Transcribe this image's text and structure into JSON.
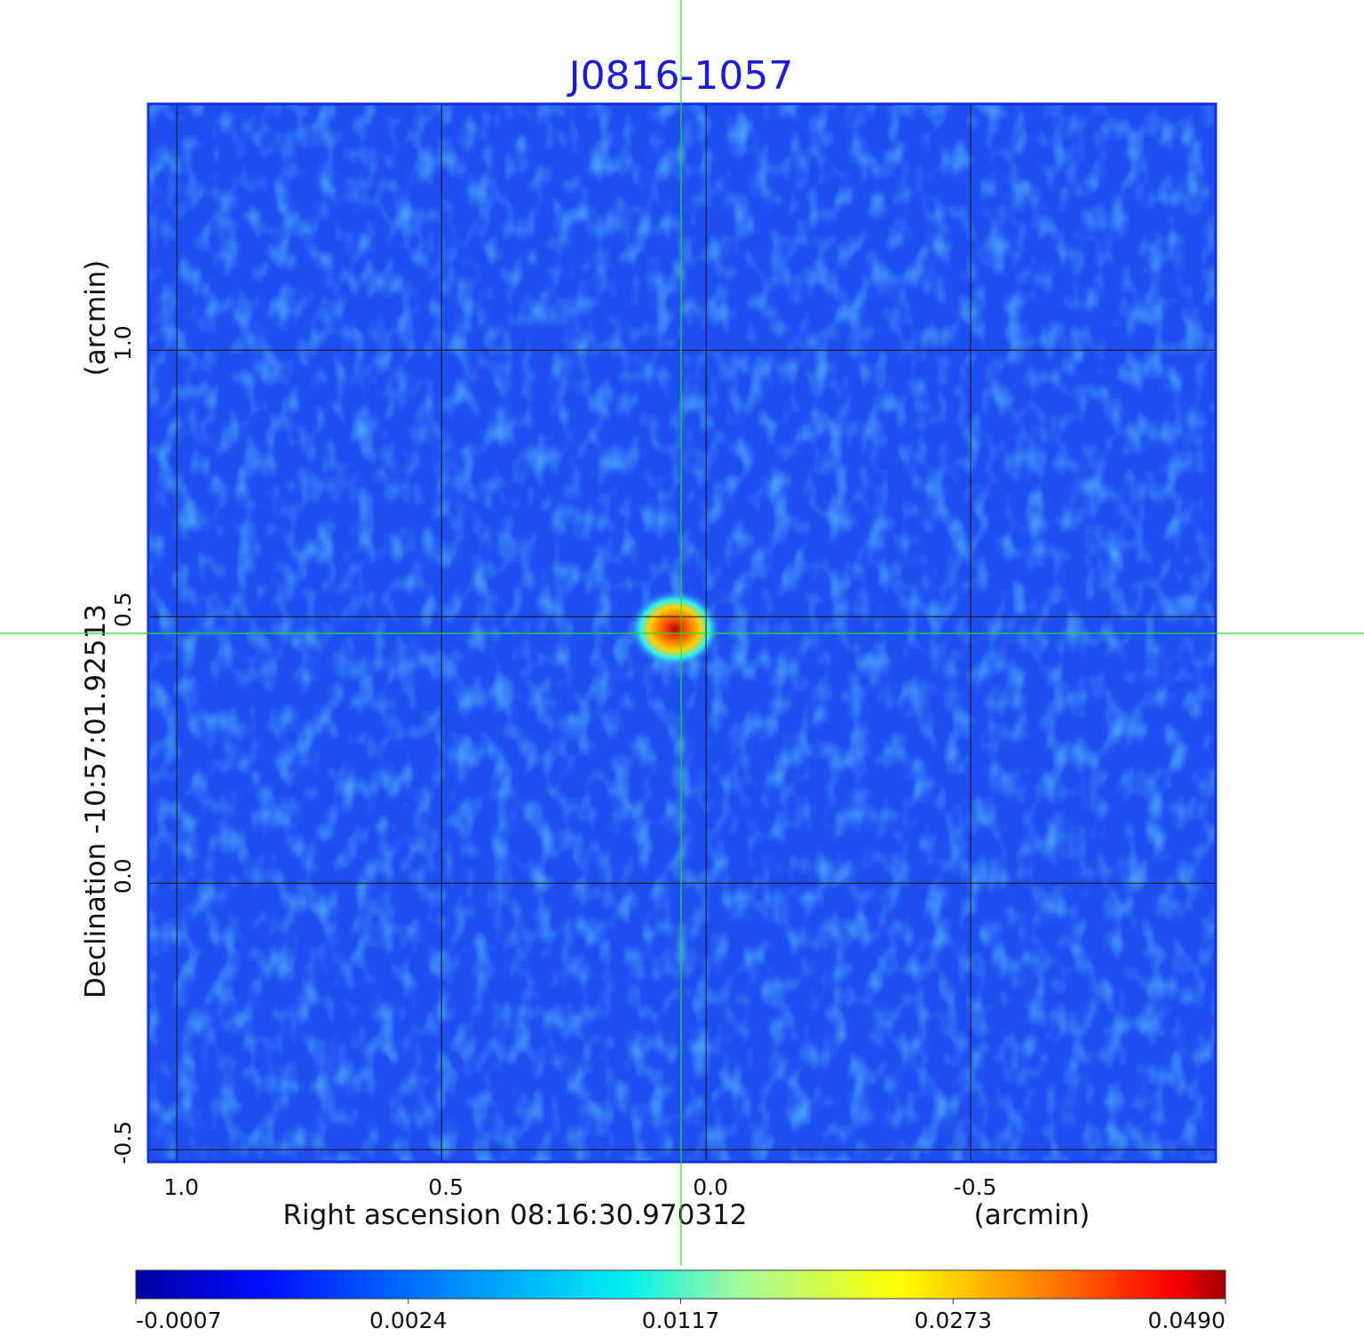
{
  "chart_data": {
    "type": "image",
    "title": "J0816-1057",
    "xlabel": "Right ascension  08:16:30.970312",
    "xunit": "(arcmin)",
    "ylabel": "Declination  -10:57:01.92513",
    "yunit": "(arcmin)",
    "xlim": [
      1.054,
      -0.963
    ],
    "ylim": [
      -0.523,
      1.462
    ],
    "xticks": [
      {
        "value": 1,
        "label": "1.0"
      },
      0.5,
      {
        "value": 0,
        "label": "0.0"
      },
      -0.5
    ],
    "yticks": [
      -0.5,
      {
        "value": 0,
        "label": "0.0"
      },
      0.5,
      {
        "value": 1,
        "label": "1.0"
      }
    ],
    "grid": true,
    "colorbar_ticks": [
      -0.0007,
      0.0024,
      0.0117,
      0.0273,
      {
        "value": 0.049,
        "label": "0.0490"
      }
    ]
  }
}
